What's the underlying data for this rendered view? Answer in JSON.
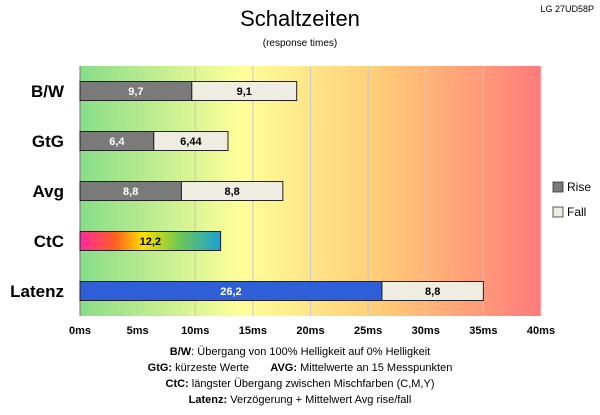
{
  "title": "Schaltzeiten",
  "subtitle": "(response times)",
  "model": "LG 27UD58P",
  "colors": {
    "rise": "#7a7a7a",
    "fall": "#efece2",
    "latency": "#2f5fd8",
    "grad_start": "#88dd88",
    "grad_mid": "#ffff99",
    "grad_end": "#ff7b7b"
  },
  "chart_data": {
    "type": "bar",
    "orientation": "horizontal",
    "stacked": true,
    "title": "Schaltzeiten",
    "subtitle": "(response times)",
    "categories": [
      "B/W",
      "GtG",
      "Avg",
      "CtC",
      "Latenz"
    ],
    "x_ticks": [
      "0ms",
      "5ms",
      "10ms",
      "15ms",
      "20ms",
      "25ms",
      "30ms",
      "35ms",
      "40ms"
    ],
    "xlim": [
      0,
      40
    ],
    "grid": true,
    "legend_position": "right",
    "bars": [
      {
        "category": "B/W",
        "segments": [
          {
            "series": "Rise",
            "value": 9.7,
            "label": "9,7"
          },
          {
            "series": "Fall",
            "value": 9.1,
            "label": "9,1"
          }
        ]
      },
      {
        "category": "GtG",
        "segments": [
          {
            "series": "Rise",
            "value": 6.4,
            "label": "6,4"
          },
          {
            "series": "Fall",
            "value": 6.44,
            "label": "6,44"
          }
        ]
      },
      {
        "category": "Avg",
        "segments": [
          {
            "series": "Rise",
            "value": 8.8,
            "label": "8,8"
          },
          {
            "series": "Fall",
            "value": 8.8,
            "label": "8,8"
          }
        ]
      },
      {
        "category": "CtC",
        "segments": [
          {
            "series": "rainbow",
            "value": 12.2,
            "label": "12,2"
          }
        ]
      },
      {
        "category": "Latenz",
        "segments": [
          {
            "series": "latency",
            "value": 26.2,
            "label": "26,2"
          },
          {
            "series": "Fall",
            "value": 8.8,
            "label": "8,8"
          }
        ]
      }
    ],
    "legend": [
      "Rise",
      "Fall"
    ]
  },
  "notes": [
    {
      "key": "B/W",
      "text": ":  Übergang von 100% Helligkeit auf 0% Helligkeit"
    },
    {
      "key": "GtG:",
      "text": " kürzeste  Werte",
      "key2": "AVG:",
      "text2": " Mittelwerte  an 15 Messpunkten"
    },
    {
      "key": "CtC:",
      "text": " längster Übergang  zwischen Mischfarben  (C,M,Y)"
    },
    {
      "key": "Latenz:",
      "text": " Verzögerung  + Mittelwert  Avg rise/fall"
    }
  ]
}
